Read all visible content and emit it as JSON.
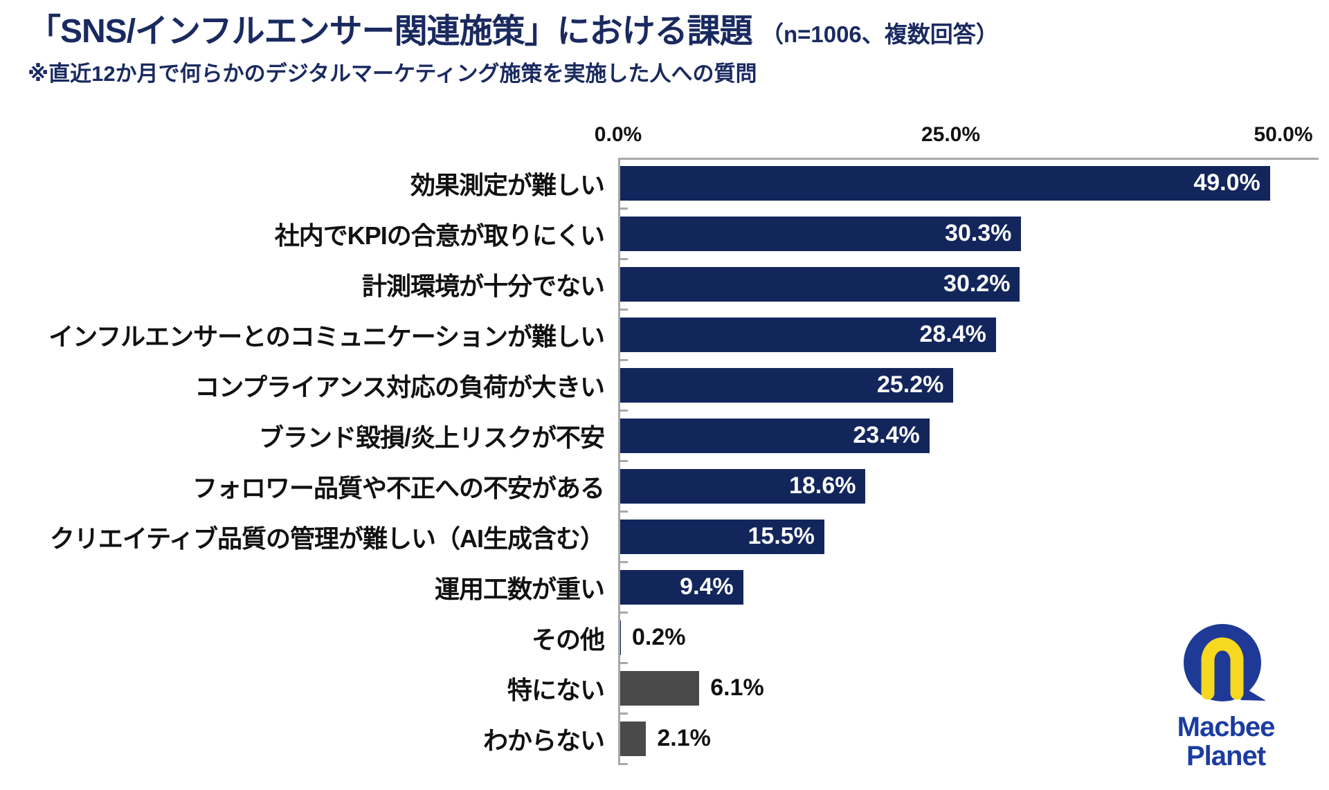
{
  "header": {
    "title": "「SNS/インフルエンサー関連施策」における課題",
    "title_note": "（n=1006、複数回答）",
    "subtitle": "※直近12か月で何らかのデジタルマーケティング施策を実施した人への質問"
  },
  "chart_data": {
    "type": "bar",
    "orientation": "horizontal",
    "title": "「SNS/インフルエンサー関連施策」における課題（n=1006、複数回答）",
    "note": "※直近12か月で何らかのデジタルマーケティング施策を実施した人への質問",
    "categories": [
      "効果測定が難しい",
      "社内でKPIの合意が取りにくい",
      "計測環境が十分でない",
      "インフルエンサーとのコミュニケーションが難しい",
      "コンプライアンス対応の負荷が大きい",
      "ブランド毀損/炎上リスクが不安",
      "フォロワー品質や不正への不安がある",
      "クリエイティブ品質の管理が難しい（AI生成含む）",
      "運用工数が重い",
      "その他",
      "特にない",
      "わからない"
    ],
    "values": [
      49.0,
      30.3,
      30.2,
      28.4,
      25.2,
      23.4,
      18.6,
      15.5,
      9.4,
      0.2,
      6.1,
      2.1
    ],
    "value_labels": [
      "49.0%",
      "30.3%",
      "30.2%",
      "28.4%",
      "25.2%",
      "23.4%",
      "18.6%",
      "15.5%",
      "9.4%",
      "0.2%",
      "6.1%",
      "2.1%"
    ],
    "bar_styles": [
      "navy",
      "navy",
      "navy",
      "navy",
      "navy",
      "navy",
      "navy",
      "navy",
      "navy",
      "navy",
      "gray",
      "gray"
    ],
    "label_placement": [
      "inside",
      "inside",
      "inside",
      "inside",
      "inside",
      "inside",
      "inside",
      "inside",
      "inside",
      "outside",
      "outside",
      "outside"
    ],
    "x_ticks": [
      {
        "label": "0.0%",
        "value": 0
      },
      {
        "label": "25.0%",
        "value": 25
      },
      {
        "label": "50.0%",
        "value": 50
      }
    ],
    "xlim": [
      0,
      50
    ],
    "grid": false,
    "legend": "none",
    "bar_color_navy": "#13265c",
    "bar_color_gray": "#4a4a4a"
  },
  "logo": {
    "line1": "Macbee",
    "line2": "Planet",
    "blue": "#1e3a96",
    "yellow": "#f5d81f"
  }
}
